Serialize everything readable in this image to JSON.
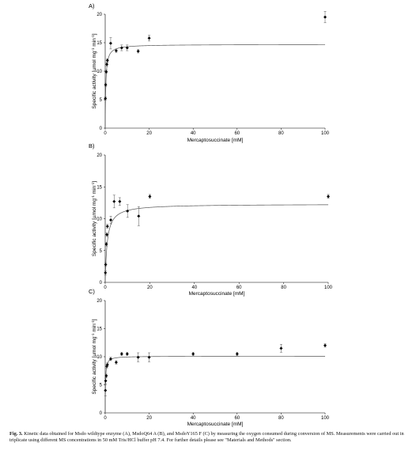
{
  "chart_data": [
    {
      "type": "scatter",
      "panel_label": "A)",
      "xlabel": "Mercaptosuccinate [mM]",
      "ylabel_parts": [
        "Specific activity [µmol mg",
        "-1",
        " min",
        "-1",
        "]"
      ],
      "xlim": [
        0,
        100
      ],
      "ylim": [
        0,
        20
      ],
      "xticks": [
        0,
        20,
        40,
        60,
        80,
        100
      ],
      "yticks": [
        0,
        5,
        10,
        15,
        20
      ],
      "points": [
        {
          "x": 0.1,
          "y": 5.2,
          "err": 0.3
        },
        {
          "x": 0.2,
          "y": 7.6,
          "err": 0.3
        },
        {
          "x": 0.5,
          "y": 9.9,
          "err": 0.3
        },
        {
          "x": 0.75,
          "y": 11.2,
          "err": 0.3
        },
        {
          "x": 1,
          "y": 11.9,
          "err": 0.3
        },
        {
          "x": 2.5,
          "y": 14.9,
          "err": 1.0
        },
        {
          "x": 5,
          "y": 13.6,
          "err": 0.3
        },
        {
          "x": 7.5,
          "y": 14.1,
          "err": 0.5
        },
        {
          "x": 10,
          "y": 14.1,
          "err": 0.5
        },
        {
          "x": 15,
          "y": 13.5,
          "err": 0.3
        },
        {
          "x": 20,
          "y": 15.8,
          "err": 0.5
        },
        {
          "x": 100,
          "y": 19.5,
          "err": 1.0
        }
      ],
      "fit": {
        "vmax": 14.7,
        "km": 0.28
      }
    },
    {
      "type": "scatter",
      "panel_label": "B)",
      "xlabel": "Mercaptosuccinate [mM]",
      "ylabel_parts": [
        "Specific activity [µmol mg",
        "-1",
        " min",
        "-1",
        "]"
      ],
      "xlim": [
        0,
        100
      ],
      "ylim": [
        0,
        20
      ],
      "xticks": [
        0,
        20,
        40,
        60,
        80,
        100
      ],
      "yticks": [
        0,
        5,
        10,
        15,
        20
      ],
      "points": [
        {
          "x": 0.1,
          "y": 1.5,
          "err": 0.3
        },
        {
          "x": 0.2,
          "y": 2.8,
          "err": 0.3
        },
        {
          "x": 0.5,
          "y": 6.0,
          "err": 0.3
        },
        {
          "x": 0.75,
          "y": 7.5,
          "err": 0.3
        },
        {
          "x": 1,
          "y": 8.8,
          "err": 0.3
        },
        {
          "x": 2.5,
          "y": 9.8,
          "err": 0.6
        },
        {
          "x": 4,
          "y": 12.7,
          "err": 1.0
        },
        {
          "x": 6.5,
          "y": 12.7,
          "err": 0.6
        },
        {
          "x": 10,
          "y": 11.2,
          "err": 1.0
        },
        {
          "x": 15,
          "y": 10.4,
          "err": 1.5
        },
        {
          "x": 20,
          "y": 13.5,
          "err": 0.3
        },
        {
          "x": 100,
          "y": 13.5,
          "err": 0.3
        }
      ],
      "fit": {
        "vmax": 12.3,
        "km": 0.9
      }
    },
    {
      "type": "scatter",
      "panel_label": "C)",
      "xlabel": "Mercaptosuccinate [mM]",
      "ylabel_parts": [
        "Specific activity [µmol mg",
        "-1",
        " min",
        "-1",
        "]"
      ],
      "xlim": [
        0,
        100
      ],
      "ylim": [
        0,
        20
      ],
      "xticks": [
        0,
        20,
        40,
        60,
        80,
        100
      ],
      "yticks": [
        0,
        5,
        10,
        15,
        20
      ],
      "points": [
        {
          "x": 0.1,
          "y": 4.0,
          "err": 1.0
        },
        {
          "x": 0.2,
          "y": 5.7,
          "err": 0.5
        },
        {
          "x": 0.5,
          "y": 6.6,
          "err": 0.3
        },
        {
          "x": 0.75,
          "y": 8.3,
          "err": 0.3
        },
        {
          "x": 1,
          "y": 8.6,
          "err": 0.3
        },
        {
          "x": 2.5,
          "y": 9.6,
          "err": 0.3
        },
        {
          "x": 5,
          "y": 9.0,
          "err": 0.3
        },
        {
          "x": 7.5,
          "y": 10.5,
          "err": 0.3
        },
        {
          "x": 10,
          "y": 10.5,
          "err": 0.3
        },
        {
          "x": 15,
          "y": 9.9,
          "err": 0.8
        },
        {
          "x": 20,
          "y": 9.9,
          "err": 0.8
        },
        {
          "x": 40,
          "y": 10.5,
          "err": 0.3
        },
        {
          "x": 60,
          "y": 10.5,
          "err": 0.3
        },
        {
          "x": 80,
          "y": 11.5,
          "err": 0.7
        },
        {
          "x": 100,
          "y": 12.0,
          "err": 0.3
        }
      ],
      "fit": {
        "vmax": 10.1,
        "km": 0.15
      }
    }
  ],
  "caption": {
    "label": "Fig. 3.",
    "text": " Kinetic data obtained for Msdo wildtype enzyme (A), MsdoQ64 A (B), and MsdoY165 F (C) by measuring the oxygen consumed during conversion of MS. Measurements were carried out in triplicate using different MS concentrations in 50 mM Tris/HCl buffer pH 7.4. For further details please see \"Materials and Methods\" section."
  }
}
